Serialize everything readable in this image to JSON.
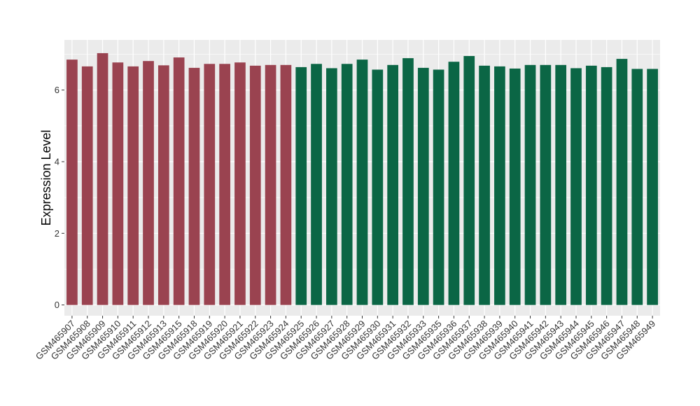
{
  "chart_data": {
    "type": "bar",
    "title": "",
    "xlabel": "",
    "ylabel": "Expression Level",
    "ylim": [
      -0.3,
      7.4
    ],
    "yticks": [
      0,
      2,
      4,
      6
    ],
    "grid": true,
    "legend": "none",
    "categories": [
      "GSM465907",
      "GSM465908",
      "GSM465909",
      "GSM465910",
      "GSM465911",
      "GSM465912",
      "GSM465913",
      "GSM465915",
      "GSM465918",
      "GSM465919",
      "GSM465920",
      "GSM465921",
      "GSM465922",
      "GSM465923",
      "GSM465924",
      "GSM465925",
      "GSM465926",
      "GSM465927",
      "GSM465928",
      "GSM465929",
      "GSM465930",
      "GSM465931",
      "GSM465932",
      "GSM465933",
      "GSM465935",
      "GSM465936",
      "GSM465937",
      "GSM465938",
      "GSM465939",
      "GSM465940",
      "GSM465941",
      "GSM465942",
      "GSM465943",
      "GSM465944",
      "GSM465945",
      "GSM465946",
      "GSM465947",
      "GSM465948",
      "GSM465949"
    ],
    "values": [
      6.85,
      6.66,
      7.03,
      6.77,
      6.66,
      6.81,
      6.69,
      6.91,
      6.62,
      6.73,
      6.73,
      6.77,
      6.68,
      6.7,
      6.7,
      6.64,
      6.73,
      6.61,
      6.73,
      6.85,
      6.57,
      6.7,
      6.89,
      6.62,
      6.57,
      6.79,
      6.95,
      6.68,
      6.66,
      6.6,
      6.7,
      6.7,
      6.7,
      6.61,
      6.68,
      6.64,
      6.87,
      6.59,
      6.59
    ],
    "colors": [
      "#9A4350",
      "#9A4350",
      "#9A4350",
      "#9A4350",
      "#9A4350",
      "#9A4350",
      "#9A4350",
      "#9A4350",
      "#9A4350",
      "#9A4350",
      "#9A4350",
      "#9A4350",
      "#9A4350",
      "#9A4350",
      "#9A4350",
      "#0B6645",
      "#0B6645",
      "#0B6645",
      "#0B6645",
      "#0B6645",
      "#0B6645",
      "#0B6645",
      "#0B6645",
      "#0B6645",
      "#0B6645",
      "#0B6645",
      "#0B6645",
      "#0B6645",
      "#0B6645",
      "#0B6645",
      "#0B6645",
      "#0B6645",
      "#0B6645",
      "#0B6645",
      "#0B6645",
      "#0B6645",
      "#0B6645",
      "#0B6645",
      "#0B6645"
    ],
    "panel_background": "#EBEBEB",
    "grid_color": "#FFFFFF"
  }
}
